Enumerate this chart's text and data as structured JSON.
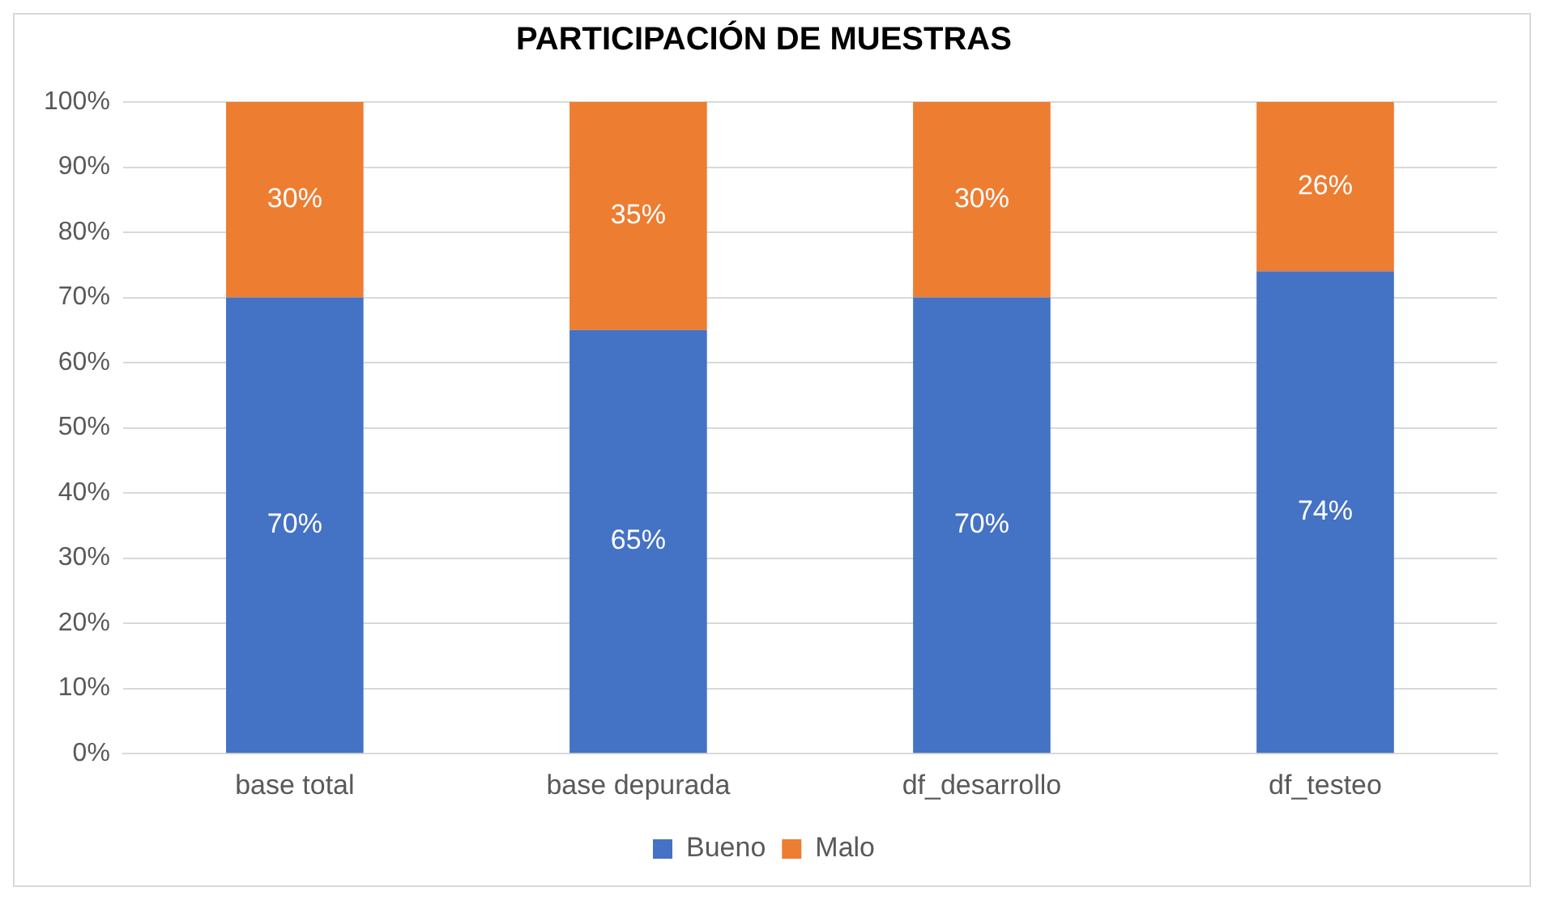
{
  "chart_data": {
    "type": "bar",
    "title": "PARTICIPACIÓN DE MUESTRAS",
    "stacked": true,
    "categories": [
      "base total",
      "base depurada",
      "df_desarrollo",
      "df_testeo"
    ],
    "series": [
      {
        "name": "Bueno",
        "color": "#4472c4",
        "values": [
          70,
          65,
          70,
          74
        ],
        "value_labels": [
          "70%",
          "65%",
          "70%",
          "74%"
        ]
      },
      {
        "name": "Malo",
        "color": "#ed7d31",
        "values": [
          30,
          35,
          30,
          26
        ],
        "value_labels": [
          "30%",
          "35%",
          "30%",
          "26%"
        ]
      }
    ],
    "ylim": [
      0,
      100
    ],
    "yticks": [
      {
        "value": 0,
        "label": "0%"
      },
      {
        "value": 10,
        "label": "10%"
      },
      {
        "value": 20,
        "label": "20%"
      },
      {
        "value": 30,
        "label": "30%"
      },
      {
        "value": 40,
        "label": "40%"
      },
      {
        "value": 50,
        "label": "50%"
      },
      {
        "value": 60,
        "label": "60%"
      },
      {
        "value": 70,
        "label": "70%"
      },
      {
        "value": 80,
        "label": "80%"
      },
      {
        "value": 90,
        "label": "90%"
      },
      {
        "value": 100,
        "label": "100%"
      }
    ],
    "grid": "y",
    "legend": "bottom"
  }
}
